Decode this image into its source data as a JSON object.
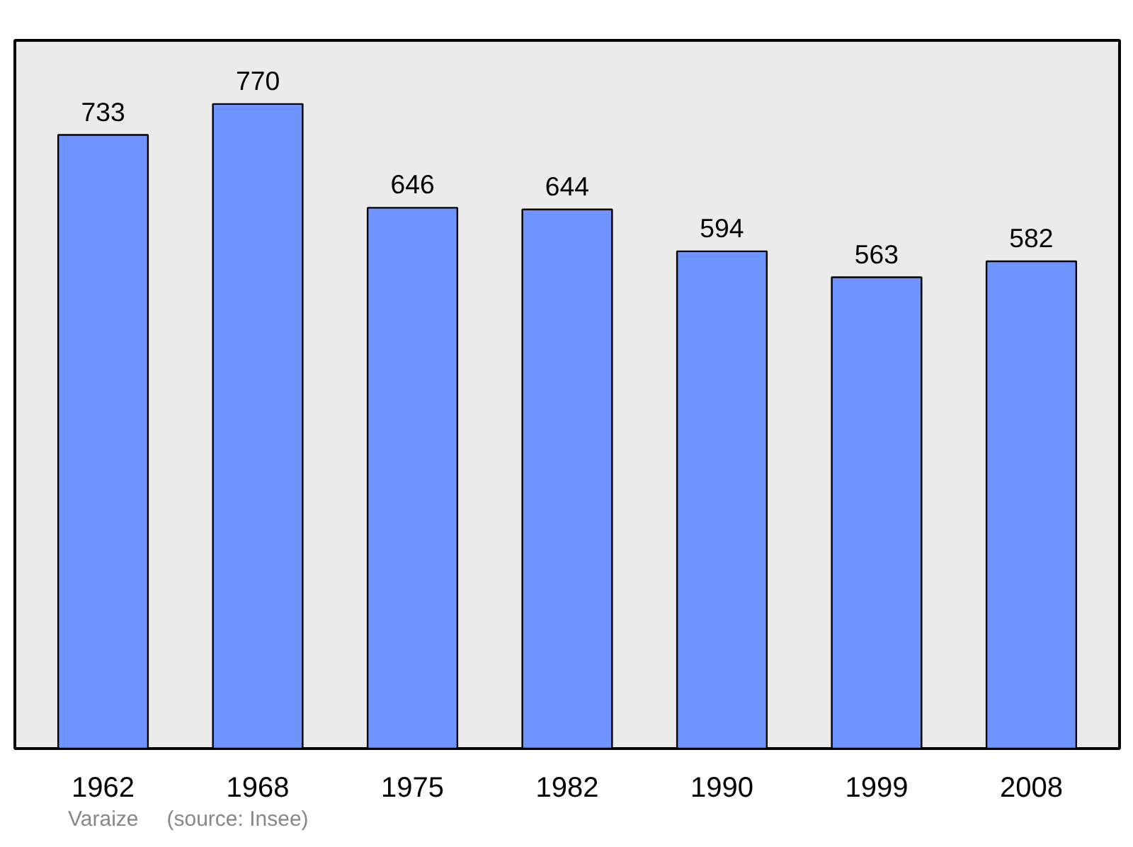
{
  "chart_data": {
    "type": "bar",
    "categories": [
      "1962",
      "1968",
      "1975",
      "1982",
      "1990",
      "1999",
      "2008"
    ],
    "values": [
      733,
      770,
      646,
      644,
      594,
      563,
      582
    ],
    "color": "#7094ff",
    "ylim": [
      0,
      846
    ],
    "data_labels": true,
    "grid": false,
    "annotations": [
      "Varaize",
      "(source: Insee)"
    ]
  }
}
